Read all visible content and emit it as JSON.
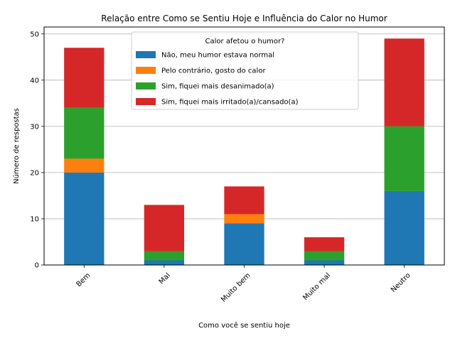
{
  "chart_data": {
    "type": "bar",
    "stacked": true,
    "title": "Relação entre Como se Sentiu Hoje e Influência do Calor no Humor",
    "xlabel": "Como você se sentiu hoje",
    "ylabel": "Número de respostas",
    "categories": [
      "Bem",
      "Mal",
      "Muito bem",
      "Muito mal",
      "Neutro"
    ],
    "ylim": [
      0,
      51.5
    ],
    "yticks": [
      0,
      10,
      20,
      30,
      40,
      50
    ],
    "grid": "horizontal",
    "legend": {
      "title": "Calor afetou o humor?",
      "placement": "upper center"
    },
    "series": [
      {
        "name": "Não, meu humor estava normal",
        "color": "#1f77b4",
        "values": [
          20,
          1,
          9,
          1,
          16
        ]
      },
      {
        "name": "Pelo contrário, gosto do calor",
        "color": "#ff7f0e",
        "values": [
          3,
          0,
          2,
          0,
          0
        ]
      },
      {
        "name": "Sim, fiquei mais desanimado(a)",
        "color": "#2ca02c",
        "values": [
          11,
          2,
          0,
          2,
          14
        ]
      },
      {
        "name": "Sim, fiquei mais irritado(a)/cansado(a)",
        "color": "#d62728",
        "values": [
          13,
          10,
          6,
          3,
          19
        ]
      }
    ]
  }
}
